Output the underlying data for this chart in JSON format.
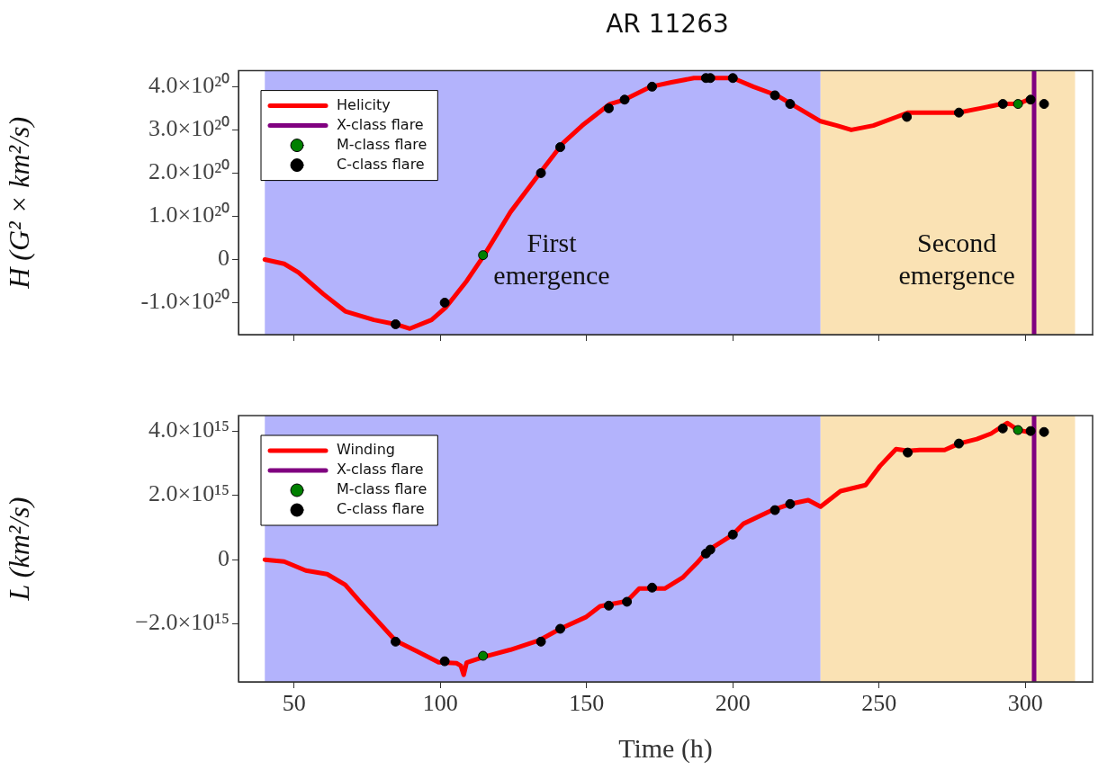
{
  "chart_data": [
    {
      "type": "line",
      "title": "AR 11263",
      "ylabel": "H (G² × km²/s)",
      "legend": "top left",
      "tick_labels": "y",
      "xlim": [
        31,
        323
      ],
      "xticks": [
        50,
        100,
        150,
        200,
        250,
        300
      ],
      "ylim": [
        -1.74e+20,
        4.37e+20
      ],
      "yticks": [
        {
          "value": -1e+20,
          "label": "-1.0×10²⁰"
        },
        0,
        {
          "value": 1e+20,
          "label": "1.0×10²⁰"
        },
        {
          "value": 2e+20,
          "label": "2.0×10²⁰"
        },
        {
          "value": 3e+20,
          "label": "3.0×10²⁰"
        },
        {
          "value": 4e+20,
          "label": "4.0×10²⁰"
        }
      ],
      "bands": [
        {
          "axis": "x",
          "from": 40,
          "to": 230,
          "color": "#b3b3fc",
          "label": "First emergence"
        },
        {
          "axis": "x",
          "from": 230,
          "to": 317,
          "color": "#fae2b4",
          "label": "Second emergence"
        }
      ],
      "series": [
        {
          "name": "X-class flare",
          "color": "#800080",
          "x": [
            303,
            303
          ],
          "values": [
            -1.74e+20,
            4.37e+20
          ]
        },
        {
          "name": "Helicity",
          "color": "#ff0000",
          "x": [
            40,
            46.6,
            51.5,
            60,
            67.5,
            77.3,
            84.7,
            89.6,
            97,
            102,
            109,
            115,
            124,
            134,
            142,
            148.5,
            158,
            163,
            172,
            179,
            186.7,
            191.5,
            200,
            207,
            215,
            220,
            230,
            235.6,
            240.5,
            248,
            256,
            260,
            268.7,
            277,
            284.7,
            292,
            297.5,
            301,
            302
          ],
          "values": [
            0,
            -1e+19,
            -3e+19,
            -8e+19,
            -1.2e+20,
            -1.4e+20,
            -1.5e+20,
            -1.6e+20,
            -1.4e+20,
            -1.1e+20,
            -5e+19,
            1e+19,
            1.1e+20,
            2e+20,
            2.7e+20,
            3.1e+20,
            3.6e+20,
            3.7e+20,
            4e+20,
            4.1e+20,
            4.2e+20,
            4.2e+20,
            4.2e+20,
            4e+20,
            3.8e+20,
            3.6e+20,
            3.2e+20,
            3.1e+20,
            3e+20,
            3.1e+20,
            3.3e+20,
            3.4e+20,
            3.4e+20,
            3.4e+20,
            3.5e+20,
            3.6e+20,
            3.6e+20,
            3.7e+20,
            3.7e+20
          ]
        },
        {
          "name": "M-class flare",
          "type": "scatter",
          "marker": "circle",
          "color": "#008000",
          "x": [
            114.6,
            297.5
          ],
          "values": [
            1e+19,
            3.6e+20
          ]
        },
        {
          "name": "C-class flare",
          "type": "scatter",
          "marker": "circle",
          "color": "#000000",
          "x": [
            84.7,
            101.5,
            134.4,
            141,
            157.6,
            163,
            172.4,
            190.8,
            192.3,
            200,
            214.4,
            219.6,
            259.5,
            277.3,
            292.3,
            301.8,
            306.4
          ],
          "values": [
            -1.5e+20,
            -1e+20,
            2e+20,
            2.6e+20,
            3.5e+20,
            3.7e+20,
            4e+20,
            4.2e+20,
            4.2e+20,
            4.2e+20,
            3.8e+20,
            3.6e+20,
            3.3e+20,
            3.4e+20,
            3.6e+20,
            3.7e+20,
            3.6e+20
          ]
        }
      ]
    },
    {
      "type": "line",
      "xlabel": "Time (h)",
      "ylabel": "L (km²/s)",
      "legend": "top left",
      "xlim": [
        31,
        323
      ],
      "xticks": [
        50,
        100,
        150,
        200,
        250,
        300
      ],
      "ylim": [
        -3800000000000000.0,
        4480000000000000.0
      ],
      "yticks": [
        {
          "value": -2000000000000000.0,
          "label": "−2.0×10¹⁵"
        },
        0,
        {
          "value": 2000000000000000.0,
          "label": "2.0×10¹⁵"
        },
        {
          "value": 4000000000000000.0,
          "label": "4.0×10¹⁵"
        }
      ],
      "bands": [
        {
          "axis": "x",
          "from": 40,
          "to": 230,
          "color": "#b3b3fc"
        },
        {
          "axis": "x",
          "from": 230,
          "to": 317,
          "color": "#fae2b4"
        }
      ],
      "series": [
        {
          "name": "X-class flare",
          "color": "#800080",
          "x": [
            303,
            303
          ],
          "values": [
            -3800000000000000.0,
            4480000000000000.0
          ]
        },
        {
          "name": "Winding",
          "color": "#ff0000",
          "x": [
            40,
            46.6,
            54,
            61.3,
            67.5,
            72.4,
            78.5,
            84.7,
            92,
            99.4,
            105.5,
            107,
            108,
            109,
            115,
            124,
            134,
            141,
            149.7,
            154.6,
            163.8,
            168,
            176.7,
            182.8,
            187.7,
            191.4,
            200,
            203.7,
            213.5,
            219.6,
            225.8,
            230,
            236.8,
            245.4,
            250.3,
            255.8,
            260,
            263.8,
            272.4,
            277.3,
            283.4,
            288.3,
            293.9,
            297.5,
            301,
            302
          ],
          "values": [
            0,
            -60000000000000.0,
            -340000000000000.0,
            -450000000000000.0,
            -780000000000000.0,
            -1290000000000000.0,
            -1900000000000000.0,
            -2520000000000000.0,
            -2850000000000000.0,
            -3190000000000000.0,
            -3220000000000000.0,
            -3300000000000000.0,
            -3580000000000000.0,
            -3200000000000000.0,
            -3020000000000000.0,
            -2800000000000000.0,
            -2500000000000000.0,
            -2150000000000000.0,
            -1790000000000000.0,
            -1450000000000000.0,
            -1290000000000000.0,
            -900000000000000.0,
            -900000000000000.0,
            -560000000000000.0,
            -110000000000000.0,
            280000000000000.0,
            780000000000000.0,
            1120000000000000.0,
            1540000000000000.0,
            1730000000000000.0,
            1850000000000000.0,
            1650000000000000.0,
            2130000000000000.0,
            2320000000000000.0,
            2910000000000000.0,
            3440000000000000.0,
            3380000000000000.0,
            3410000000000000.0,
            3410000000000000.0,
            3610000000000000.0,
            3750000000000000.0,
            3920000000000000.0,
            4250000000000000.0,
            4030000000000000.0,
            3970000000000000.0,
            3970000000000000.0
          ]
        },
        {
          "name": "M-class flare",
          "type": "scatter",
          "marker": "circle",
          "color": "#008000",
          "x": [
            114.6,
            297.5
          ],
          "values": [
            -2990000000000000.0,
            4030000000000000.0
          ]
        },
        {
          "name": "C-class flare",
          "type": "scatter",
          "marker": "circle",
          "color": "#000000",
          "x": [
            84.7,
            101.5,
            134.4,
            141,
            157.6,
            163.8,
            172.4,
            190.8,
            192.3,
            200,
            214.4,
            219.6,
            259.8,
            277.3,
            292.3,
            301.8,
            306.4
          ],
          "values": [
            -2550000000000000.0,
            -3160000000000000.0,
            -2550000000000000.0,
            -2150000000000000.0,
            -1430000000000000.0,
            -1310000000000000.0,
            -870000000000000.0,
            190000000000000.0,
            310000000000000.0,
            780000000000000.0,
            1540000000000000.0,
            1730000000000000.0,
            3330000000000000.0,
            3610000000000000.0,
            4080000000000000.0,
            4000000000000000.0,
            3970000000000000.0
          ]
        }
      ]
    }
  ]
}
